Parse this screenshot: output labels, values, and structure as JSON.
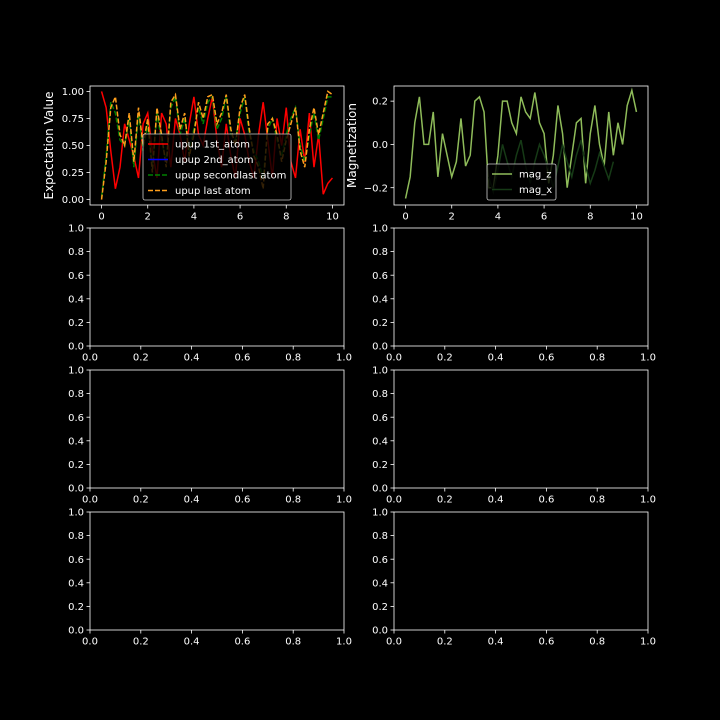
{
  "chart_data": [
    {
      "type": "line",
      "ylabel": "Expectation Value",
      "xlabel": "",
      "xlim": [
        -0.5,
        10.5
      ],
      "ylim": [
        -0.05,
        1.05
      ],
      "xticks": [
        "0",
        "2",
        "4",
        "6",
        "8",
        "10"
      ],
      "yticks": [
        "0.00",
        "0.25",
        "0.50",
        "0.75",
        "1.00"
      ],
      "legend": "center",
      "series": [
        {
          "name": "upup 1st_atom",
          "color": "#ff0000",
          "style": "solid",
          "x": [
            0,
            0.2,
            0.4,
            0.6,
            0.8,
            1.0,
            1.2,
            1.4,
            1.6,
            1.8,
            2.0,
            2.2,
            2.4,
            2.6,
            2.8,
            3.0,
            3.2,
            3.4,
            3.6,
            3.8,
            4.0,
            4.2,
            4.4,
            4.6,
            4.8,
            5.0,
            5.2,
            5.4,
            5.6,
            5.8,
            6.0,
            6.2,
            6.4,
            6.6,
            6.8,
            7.0,
            7.2,
            7.4,
            7.6,
            7.8,
            8.0,
            8.2,
            8.4,
            8.6,
            8.8,
            9.0,
            9.2,
            9.4,
            9.6,
            9.8,
            10.0
          ],
          "y": [
            1.0,
            0.85,
            0.45,
            0.1,
            0.3,
            0.7,
            0.55,
            0.4,
            0.2,
            0.7,
            0.8,
            0.45,
            0.2,
            0.8,
            0.7,
            0.3,
            0.75,
            0.6,
            0.35,
            0.7,
            0.95,
            0.6,
            0.5,
            0.75,
            0.95,
            0.55,
            0.3,
            0.7,
            0.4,
            0.2,
            0.75,
            0.6,
            0.35,
            0.2,
            0.6,
            0.9,
            0.55,
            0.2,
            0.75,
            0.5,
            0.85,
            0.35,
            0.2,
            0.65,
            0.35,
            0.8,
            0.3,
            0.6,
            0.05,
            0.15,
            0.2
          ]
        },
        {
          "name": "upup 2nd_atom",
          "color": "#0000ff",
          "style": "solid",
          "x": [],
          "y": []
        },
        {
          "name": "upup secondlast atom",
          "color": "#008000",
          "style": "dashed",
          "x": [
            0,
            0.2,
            0.4,
            0.6,
            0.8,
            1.0,
            1.2,
            1.4,
            1.6,
            1.8,
            2.0,
            2.2,
            2.4,
            2.6,
            2.8,
            3.0,
            3.2,
            3.4,
            3.6,
            3.8,
            4.0,
            4.2,
            4.4,
            4.6,
            4.8,
            5.0,
            5.2,
            5.4,
            5.6,
            5.8,
            6.0,
            6.2,
            6.4,
            6.6,
            6.8,
            7.0,
            7.2,
            7.4,
            7.6,
            7.8,
            8.0,
            8.2,
            8.4,
            8.6,
            8.8,
            9.0,
            9.2,
            9.4,
            9.6,
            9.8,
            10.0
          ],
          "y": [
            0.02,
            0.4,
            0.9,
            0.8,
            0.55,
            0.5,
            0.75,
            0.3,
            0.8,
            0.45,
            0.7,
            0.3,
            0.8,
            0.55,
            0.35,
            0.85,
            0.95,
            0.6,
            0.75,
            0.45,
            0.65,
            0.85,
            0.7,
            0.9,
            0.95,
            0.65,
            0.75,
            0.95,
            0.6,
            0.55,
            0.8,
            0.95,
            0.6,
            0.45,
            0.35,
            0.2,
            0.65,
            0.75,
            0.55,
            0.4,
            0.6,
            0.75,
            0.85,
            0.5,
            0.35,
            0.6,
            0.8,
            0.55,
            0.75,
            0.95,
            0.95
          ]
        },
        {
          "name": "upup last atom",
          "color": "#ff9f1c",
          "style": "dashed",
          "x": [
            0,
            0.2,
            0.4,
            0.6,
            0.8,
            1.0,
            1.2,
            1.4,
            1.6,
            1.8,
            2.0,
            2.2,
            2.4,
            2.6,
            2.8,
            3.0,
            3.2,
            3.4,
            3.6,
            3.8,
            4.0,
            4.2,
            4.4,
            4.6,
            4.8,
            5.0,
            5.2,
            5.4,
            5.6,
            5.8,
            6.0,
            6.2,
            6.4,
            6.6,
            6.8,
            7.0,
            7.2,
            7.4,
            7.6,
            7.8,
            8.0,
            8.2,
            8.4,
            8.6,
            8.8,
            9.0,
            9.2,
            9.4,
            9.6,
            9.8,
            10.0
          ],
          "y": [
            0.0,
            0.35,
            0.85,
            0.95,
            0.6,
            0.5,
            0.8,
            0.35,
            0.85,
            0.5,
            0.75,
            0.25,
            0.85,
            0.6,
            0.3,
            0.9,
            0.97,
            0.65,
            0.8,
            0.4,
            0.6,
            0.9,
            0.75,
            0.95,
            0.97,
            0.7,
            0.8,
            0.97,
            0.65,
            0.5,
            0.85,
            0.97,
            0.65,
            0.4,
            0.3,
            0.1,
            0.7,
            0.75,
            0.6,
            0.35,
            0.55,
            0.7,
            0.85,
            0.45,
            0.3,
            0.65,
            0.85,
            0.6,
            0.8,
            1.0,
            0.97
          ]
        }
      ]
    },
    {
      "type": "line",
      "ylabel": "Magnetization",
      "xlabel": "",
      "xlim": [
        -0.5,
        10.5
      ],
      "ylim": [
        -0.28,
        0.27
      ],
      "xticks": [
        "0",
        "2",
        "4",
        "6",
        "8",
        "10"
      ],
      "yticks": [
        "−0.2",
        "0.0",
        "0.2"
      ],
      "legend": "lower center",
      "series": [
        {
          "name": "mag_z",
          "color": "#8fbc5a",
          "style": "solid",
          "x": [
            0,
            0.2,
            0.4,
            0.6,
            0.8,
            1.0,
            1.2,
            1.4,
            1.6,
            1.8,
            2.0,
            2.2,
            2.4,
            2.6,
            2.8,
            3.0,
            3.2,
            3.4,
            3.6,
            3.8,
            4.0,
            4.2,
            4.4,
            4.6,
            4.8,
            5.0,
            5.2,
            5.4,
            5.6,
            5.8,
            6.0,
            6.2,
            6.4,
            6.6,
            6.8,
            7.0,
            7.2,
            7.4,
            7.6,
            7.8,
            8.0,
            8.2,
            8.4,
            8.6,
            8.8,
            9.0,
            9.2,
            9.4,
            9.6,
            9.8,
            10.0
          ],
          "y": [
            -0.25,
            -0.15,
            0.1,
            0.22,
            0.0,
            0.0,
            0.15,
            -0.15,
            0.05,
            -0.05,
            -0.15,
            -0.08,
            0.12,
            -0.1,
            -0.05,
            0.2,
            0.22,
            0.15,
            -0.2,
            -0.2,
            -0.05,
            0.2,
            0.2,
            0.1,
            0.05,
            0.22,
            0.15,
            0.12,
            0.24,
            0.1,
            0.05,
            -0.18,
            -0.05,
            0.18,
            0.05,
            -0.2,
            -0.05,
            0.1,
            0.12,
            -0.18,
            0.05,
            0.18,
            0.0,
            -0.1,
            0.15,
            -0.05,
            0.1,
            0.0,
            0.18,
            0.25,
            0.15
          ]
        },
        {
          "name": "mag_x",
          "color": "#163a16",
          "style": "solid",
          "x": [
            3.6,
            3.8,
            4.0,
            4.2,
            4.4,
            4.6,
            4.8,
            5.0,
            5.2,
            5.4,
            5.6,
            5.8,
            6.0,
            6.2,
            6.4,
            6.6,
            6.8,
            7.0,
            7.2,
            7.4,
            7.6,
            7.8,
            8.0,
            8.2,
            8.4,
            8.6,
            8.8,
            9.0
          ],
          "y": [
            -0.15,
            -0.22,
            -0.12,
            0.0,
            -0.08,
            -0.15,
            -0.05,
            0.02,
            -0.1,
            -0.18,
            -0.08,
            0.0,
            -0.05,
            -0.12,
            -0.2,
            -0.1,
            0.0,
            -0.08,
            -0.15,
            -0.05,
            0.02,
            -0.1,
            -0.18,
            -0.12,
            -0.04,
            -0.1,
            -0.16,
            -0.08
          ]
        }
      ]
    },
    {
      "type": "line",
      "xlim": [
        0,
        1
      ],
      "ylim": [
        0,
        1
      ],
      "xticks": [
        "0.0",
        "0.2",
        "0.4",
        "0.6",
        "0.8",
        "1.0"
      ],
      "yticks": [
        "0.0",
        "0.2",
        "0.4",
        "0.6",
        "0.8",
        "1.0"
      ],
      "series": []
    },
    {
      "type": "line",
      "xlim": [
        0,
        1
      ],
      "ylim": [
        0,
        1
      ],
      "xticks": [
        "0.0",
        "0.2",
        "0.4",
        "0.6",
        "0.8",
        "1.0"
      ],
      "yticks": [
        "0.0",
        "0.2",
        "0.4",
        "0.6",
        "0.8",
        "1.0"
      ],
      "series": []
    },
    {
      "type": "line",
      "xlim": [
        0,
        1
      ],
      "ylim": [
        0,
        1
      ],
      "xticks": [
        "0.0",
        "0.2",
        "0.4",
        "0.6",
        "0.8",
        "1.0"
      ],
      "yticks": [
        "0.0",
        "0.2",
        "0.4",
        "0.6",
        "0.8",
        "1.0"
      ],
      "series": []
    },
    {
      "type": "line",
      "xlim": [
        0,
        1
      ],
      "ylim": [
        0,
        1
      ],
      "xticks": [
        "0.0",
        "0.2",
        "0.4",
        "0.6",
        "0.8",
        "1.0"
      ],
      "yticks": [
        "0.0",
        "0.2",
        "0.4",
        "0.6",
        "0.8",
        "1.0"
      ],
      "series": []
    },
    {
      "type": "line",
      "xlim": [
        0,
        1
      ],
      "ylim": [
        0,
        1
      ],
      "xticks": [
        "0.0",
        "0.2",
        "0.4",
        "0.6",
        "0.8",
        "1.0"
      ],
      "yticks": [
        "0.0",
        "0.2",
        "0.4",
        "0.6",
        "0.8",
        "1.0"
      ],
      "series": []
    },
    {
      "type": "line",
      "xlim": [
        0,
        1
      ],
      "ylim": [
        0,
        1
      ],
      "xticks": [
        "0.0",
        "0.2",
        "0.4",
        "0.6",
        "0.8",
        "1.0"
      ],
      "yticks": [
        "0.0",
        "0.2",
        "0.4",
        "0.6",
        "0.8",
        "1.0"
      ],
      "series": []
    }
  ]
}
